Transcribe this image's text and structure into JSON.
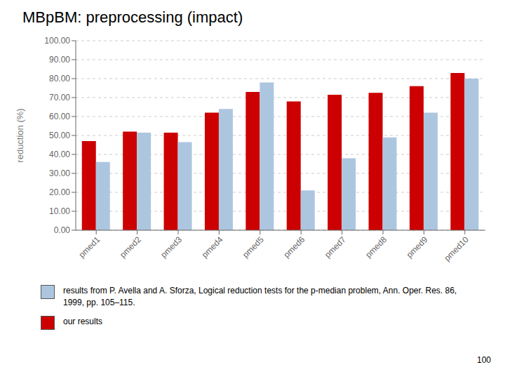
{
  "chart_data": {
    "type": "bar",
    "title": "MBpBM: preprocessing (impact)",
    "categories": [
      "pmed1",
      "pmed2",
      "pmed3",
      "pmed4",
      "pmed5",
      "pmed6",
      "pmed7",
      "pmed8",
      "pmed9",
      "pmed10"
    ],
    "series": [
      {
        "name": "our results",
        "color": "#cc0000",
        "values": [
          47.0,
          52.0,
          51.5,
          62.0,
          73.0,
          68.0,
          71.5,
          72.5,
          76.0,
          83.0
        ]
      },
      {
        "name": "results from P. Avella and A. Sforza, Logical reduction tests for the p-median problem, Ann. Oper. Res. 86, 1999, pp. 105–115.",
        "color": "#adc6e0",
        "values": [
          36.0,
          51.5,
          46.5,
          64.0,
          78.0,
          21.0,
          38.0,
          49.0,
          62.0,
          80.0
        ]
      }
    ],
    "y_label": "reduction (%)",
    "ylim": [
      0,
      100
    ],
    "yticks": [
      {
        "value": 0,
        "label": "0.00"
      },
      {
        "value": 10,
        "label": "10.00"
      },
      {
        "value": 20,
        "label": "20.00"
      },
      {
        "value": 30,
        "label": "30.00"
      },
      {
        "value": 40,
        "label": "40.00"
      },
      {
        "value": 50,
        "label": "50.00"
      },
      {
        "value": 60,
        "label": "60.00"
      },
      {
        "value": 70,
        "label": "70.00"
      },
      {
        "value": 80,
        "label": "80.00"
      },
      {
        "value": 90,
        "label": "90.00"
      },
      {
        "value": 100,
        "label": "100.00"
      }
    ],
    "grid": true,
    "annotations": [
      "100"
    ]
  }
}
